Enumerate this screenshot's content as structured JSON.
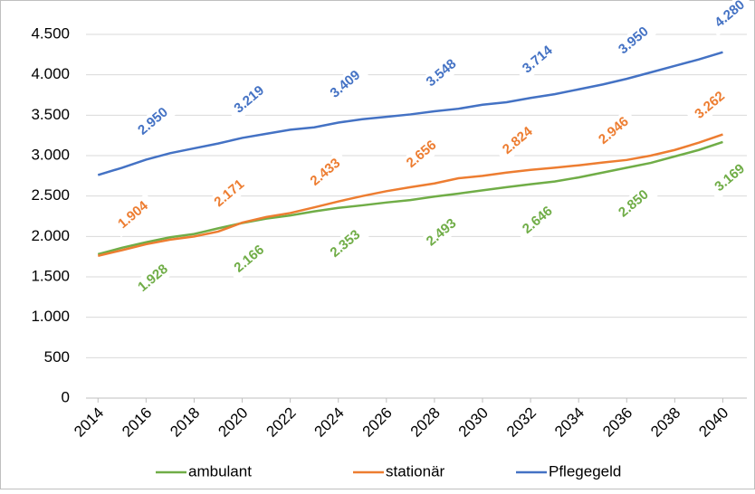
{
  "chart_data": {
    "type": "line",
    "x": [
      2014,
      2015,
      2016,
      2017,
      2018,
      2019,
      2020,
      2021,
      2022,
      2023,
      2024,
      2025,
      2026,
      2027,
      2028,
      2029,
      2030,
      2031,
      2032,
      2033,
      2034,
      2035,
      2036,
      2037,
      2038,
      2039,
      2040
    ],
    "xlim": [
      2013.5,
      2041
    ],
    "xticks": [
      2014,
      2016,
      2018,
      2020,
      2022,
      2024,
      2026,
      2028,
      2030,
      2032,
      2034,
      2036,
      2038,
      2040
    ],
    "ylim": [
      0,
      4500
    ],
    "yticks": [
      0,
      {
        "value": 500,
        "label": "500"
      },
      {
        "value": 1000,
        "label": "1.000"
      },
      {
        "value": 1500,
        "label": "1.500"
      },
      {
        "value": 2000,
        "label": "2.000"
      },
      {
        "value": 2500,
        "label": "2.500"
      },
      {
        "value": 3000,
        "label": "3.000"
      },
      {
        "value": 3500,
        "label": "3.500"
      },
      {
        "value": 4000,
        "label": "4.000"
      },
      {
        "value": 4500,
        "label": "4.500"
      }
    ],
    "grid": true,
    "legend": "bottom",
    "series": [
      {
        "name": "ambulant",
        "color": "#70ad47",
        "values": [
          1780,
          1860,
          1928,
          1990,
          2030,
          2100,
          2166,
          2220,
          2260,
          2310,
          2353,
          2385,
          2420,
          2450,
          2493,
          2530,
          2570,
          2610,
          2646,
          2680,
          2730,
          2790,
          2850,
          2910,
          2990,
          3070,
          3169
        ],
        "value_labels": [
          null,
          null,
          "1.928",
          null,
          null,
          null,
          "2.166",
          null,
          null,
          null,
          "2.353",
          null,
          null,
          null,
          "2.493",
          null,
          null,
          null,
          "2.646",
          null,
          null,
          null,
          "2.850",
          null,
          null,
          null,
          "3.169"
        ]
      },
      {
        "name": "stationär",
        "color": "#ed7d31",
        "values": [
          1760,
          1830,
          1904,
          1960,
          2000,
          2060,
          2171,
          2240,
          2290,
          2360,
          2433,
          2500,
          2560,
          2610,
          2656,
          2720,
          2750,
          2790,
          2824,
          2850,
          2880,
          2915,
          2946,
          3000,
          3070,
          3160,
          3262
        ],
        "value_labels": [
          null,
          null,
          "1.904",
          null,
          null,
          null,
          "2.171",
          null,
          null,
          null,
          "2.433",
          null,
          null,
          null,
          "2.656",
          null,
          null,
          null,
          "2.824",
          null,
          null,
          null,
          "2.946",
          null,
          null,
          null,
          "3.262"
        ]
      },
      {
        "name": "Pflegegeld",
        "color": "#4472c4",
        "values": [
          2760,
          2850,
          2950,
          3030,
          3090,
          3150,
          3219,
          3270,
          3320,
          3350,
          3409,
          3450,
          3480,
          3510,
          3548,
          3580,
          3630,
          3660,
          3714,
          3760,
          3820,
          3880,
          3950,
          4030,
          4110,
          4190,
          4280
        ],
        "value_labels": [
          null,
          null,
          "2.950",
          null,
          null,
          null,
          "3.219",
          null,
          null,
          null,
          "3.409",
          null,
          null,
          null,
          "3.548",
          null,
          null,
          null,
          "3.714",
          null,
          null,
          null,
          "3.950",
          null,
          null,
          null,
          "4.280"
        ]
      }
    ]
  }
}
